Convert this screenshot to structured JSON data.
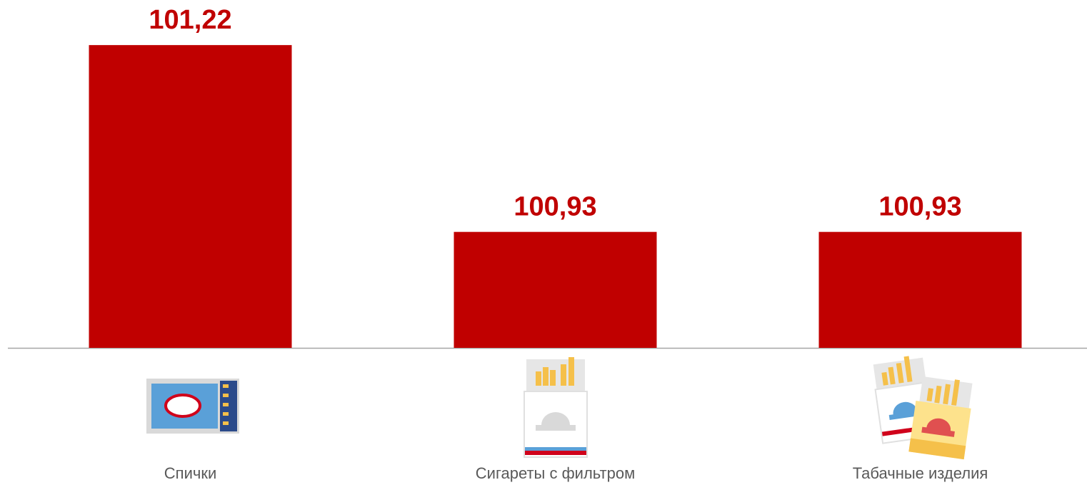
{
  "chart_data": {
    "type": "bar",
    "categories": [
      "Спички",
      "Сигареты с фильтром",
      "Табачные изделия"
    ],
    "values": [
      101.22,
      100.93,
      100.93
    ],
    "value_labels": [
      "101,22",
      "100,93",
      "100,93"
    ],
    "color": "#c00000",
    "ylim": [
      100.75,
      101.29
    ]
  }
}
